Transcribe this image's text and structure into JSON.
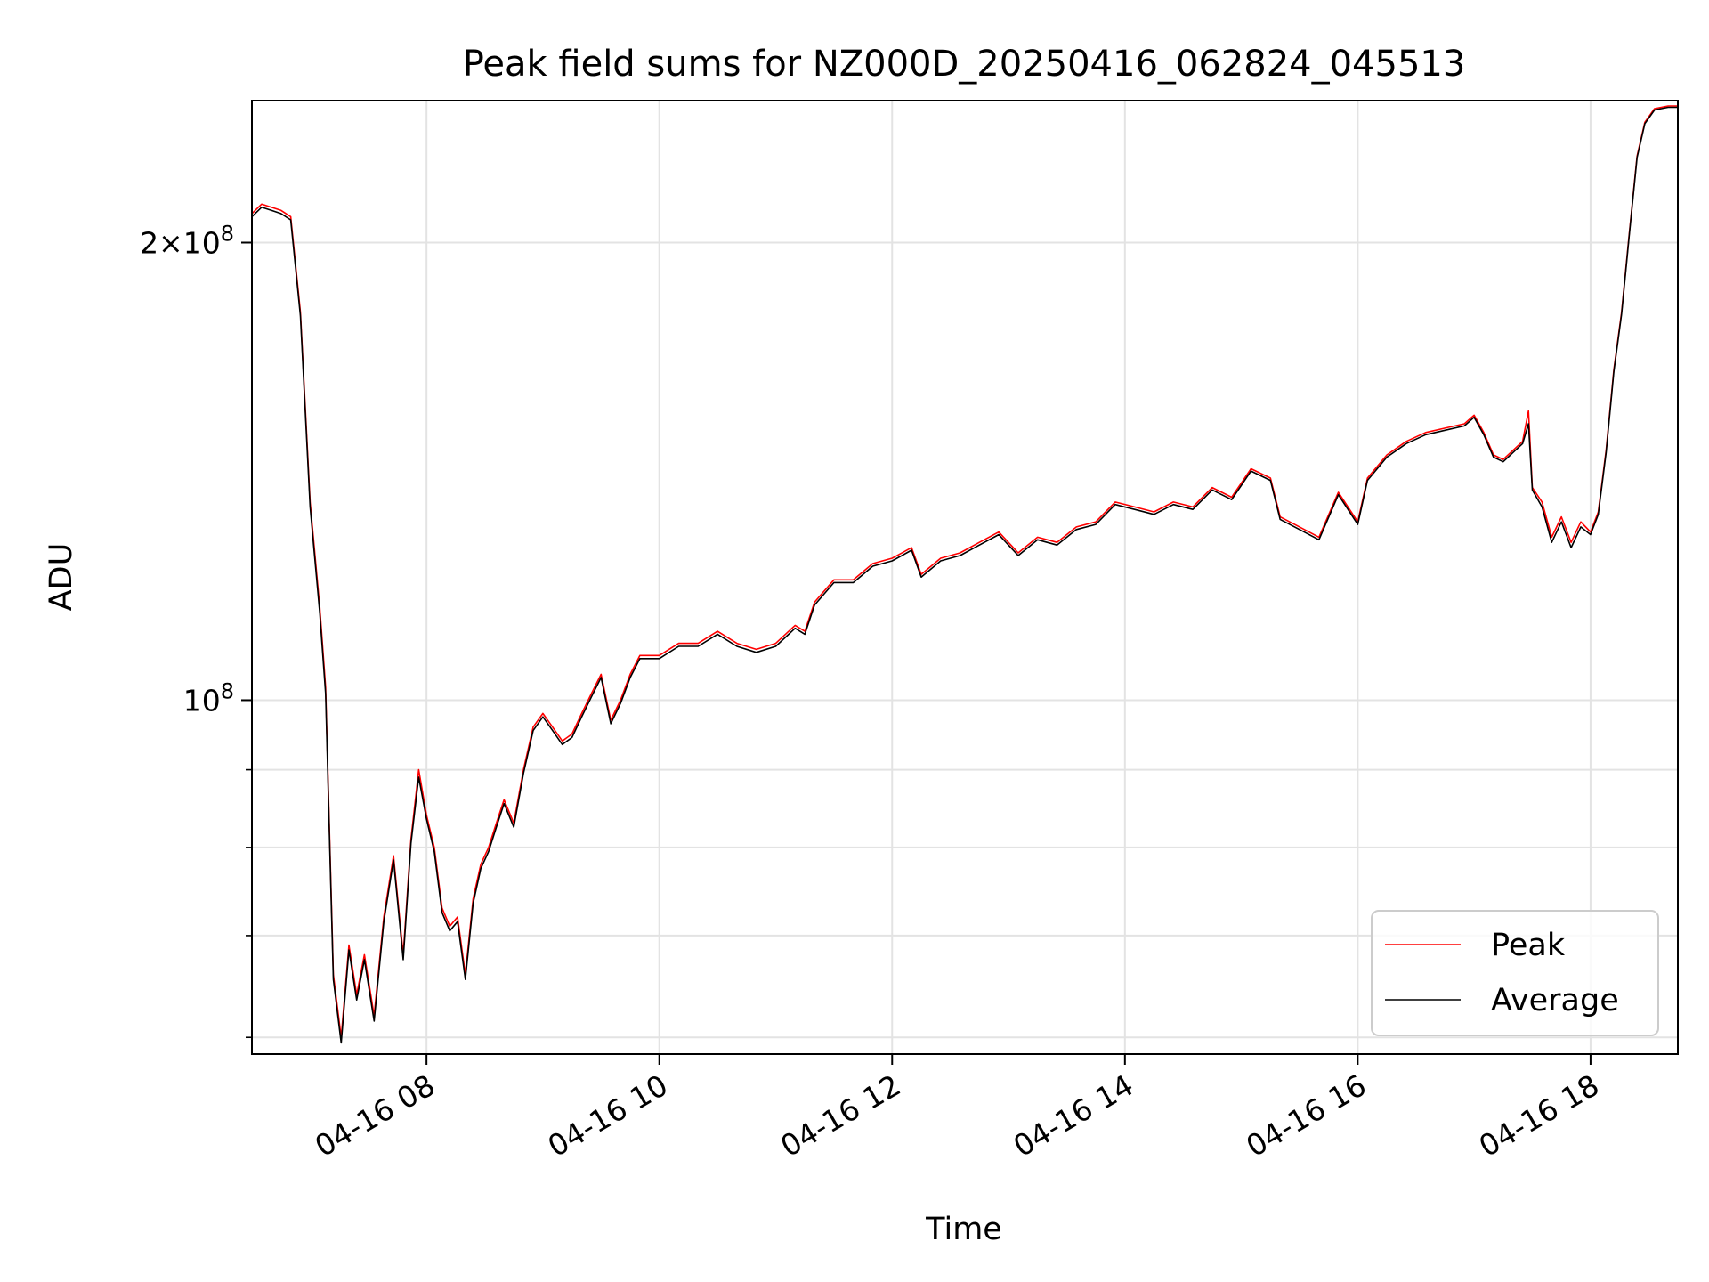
{
  "chart_data": {
    "type": "line",
    "title": "Peak field sums for NZ000D_20250416_062824_045513",
    "xlabel": "Time",
    "ylabel": "ADU",
    "y_scale": "log",
    "ylim": [
      58500000,
      248000000
    ],
    "xlim": [
      "2025-04-16 06:30",
      "2025-04-16 18:45"
    ],
    "grid": true,
    "legend_position": "lower right",
    "x_ticks": [
      {
        "t": "2025-04-16 08:00",
        "label": "04-16 08"
      },
      {
        "t": "2025-04-16 10:00",
        "label": "04-16 10"
      },
      {
        "t": "2025-04-16 12:00",
        "label": "04-16 12"
      },
      {
        "t": "2025-04-16 14:00",
        "label": "04-16 14"
      },
      {
        "t": "2025-04-16 16:00",
        "label": "04-16 16"
      },
      {
        "t": "2025-04-16 18:00",
        "label": "04-16 18"
      }
    ],
    "y_major_ticks": [
      {
        "v": 100000000,
        "base": "10",
        "exp": "8",
        "mantissa": ""
      },
      {
        "v": 200000000,
        "base": "10",
        "exp": "8",
        "mantissa": "2"
      }
    ],
    "y_minor_ticks": [
      60000000,
      70000000,
      80000000,
      90000000
    ],
    "series": [
      {
        "name": "Peak",
        "color": "#ff0000",
        "points": [
          [
            "2025-04-16 06:30",
            209000000
          ],
          [
            "2025-04-16 06:35",
            212000000
          ],
          [
            "2025-04-16 06:40",
            211000000
          ],
          [
            "2025-04-16 06:45",
            210000000
          ],
          [
            "2025-04-16 06:50",
            208000000
          ],
          [
            "2025-04-16 06:55",
            180000000
          ],
          [
            "2025-04-16 07:00",
            135000000
          ],
          [
            "2025-04-16 07:05",
            115000000
          ],
          [
            "2025-04-16 07:08",
            102000000
          ],
          [
            "2025-04-16 07:12",
            66000000
          ],
          [
            "2025-04-16 07:16",
            60000000
          ],
          [
            "2025-04-16 07:20",
            69000000
          ],
          [
            "2025-04-16 07:24",
            64000000
          ],
          [
            "2025-04-16 07:28",
            68000000
          ],
          [
            "2025-04-16 07:33",
            62000000
          ],
          [
            "2025-04-16 07:38",
            72000000
          ],
          [
            "2025-04-16 07:43",
            79000000
          ],
          [
            "2025-04-16 07:48",
            68000000
          ],
          [
            "2025-04-16 07:52",
            81000000
          ],
          [
            "2025-04-16 07:56",
            90000000
          ],
          [
            "2025-04-16 08:00",
            84000000
          ],
          [
            "2025-04-16 08:04",
            80000000
          ],
          [
            "2025-04-16 08:08",
            73000000
          ],
          [
            "2025-04-16 08:12",
            71000000
          ],
          [
            "2025-04-16 08:16",
            72000000
          ],
          [
            "2025-04-16 08:20",
            66000000
          ],
          [
            "2025-04-16 08:24",
            74000000
          ],
          [
            "2025-04-16 08:28",
            78000000
          ],
          [
            "2025-04-16 08:32",
            80000000
          ],
          [
            "2025-04-16 08:36",
            83000000
          ],
          [
            "2025-04-16 08:40",
            86000000
          ],
          [
            "2025-04-16 08:45",
            83000000
          ],
          [
            "2025-04-16 08:50",
            90000000
          ],
          [
            "2025-04-16 08:55",
            96000000
          ],
          [
            "2025-04-16 09:00",
            98000000
          ],
          [
            "2025-04-16 09:05",
            96000000
          ],
          [
            "2025-04-16 09:10",
            94000000
          ],
          [
            "2025-04-16 09:15",
            95000000
          ],
          [
            "2025-04-16 09:20",
            98000000
          ],
          [
            "2025-04-16 09:25",
            101000000
          ],
          [
            "2025-04-16 09:30",
            104000000
          ],
          [
            "2025-04-16 09:35",
            97000000
          ],
          [
            "2025-04-16 09:40",
            100000000
          ],
          [
            "2025-04-16 09:45",
            104000000
          ],
          [
            "2025-04-16 09:50",
            107000000
          ],
          [
            "2025-04-16 10:00",
            107000000
          ],
          [
            "2025-04-16 10:10",
            109000000
          ],
          [
            "2025-04-16 10:20",
            109000000
          ],
          [
            "2025-04-16 10:30",
            111000000
          ],
          [
            "2025-04-16 10:40",
            109000000
          ],
          [
            "2025-04-16 10:50",
            108000000
          ],
          [
            "2025-04-16 11:00",
            109000000
          ],
          [
            "2025-04-16 11:10",
            112000000
          ],
          [
            "2025-04-16 11:15",
            111000000
          ],
          [
            "2025-04-16 11:20",
            116000000
          ],
          [
            "2025-04-16 11:30",
            120000000
          ],
          [
            "2025-04-16 11:40",
            120000000
          ],
          [
            "2025-04-16 11:50",
            123000000
          ],
          [
            "2025-04-16 12:00",
            124000000
          ],
          [
            "2025-04-16 12:10",
            126000000
          ],
          [
            "2025-04-16 12:15",
            121000000
          ],
          [
            "2025-04-16 12:25",
            124000000
          ],
          [
            "2025-04-16 12:35",
            125000000
          ],
          [
            "2025-04-16 12:45",
            127000000
          ],
          [
            "2025-04-16 12:55",
            129000000
          ],
          [
            "2025-04-16 13:05",
            125000000
          ],
          [
            "2025-04-16 13:15",
            128000000
          ],
          [
            "2025-04-16 13:25",
            127000000
          ],
          [
            "2025-04-16 13:35",
            130000000
          ],
          [
            "2025-04-16 13:45",
            131000000
          ],
          [
            "2025-04-16 13:55",
            135000000
          ],
          [
            "2025-04-16 14:05",
            134000000
          ],
          [
            "2025-04-16 14:15",
            133000000
          ],
          [
            "2025-04-16 14:25",
            135000000
          ],
          [
            "2025-04-16 14:35",
            134000000
          ],
          [
            "2025-04-16 14:45",
            138000000
          ],
          [
            "2025-04-16 14:55",
            136000000
          ],
          [
            "2025-04-16 15:05",
            142000000
          ],
          [
            "2025-04-16 15:15",
            140000000
          ],
          [
            "2025-04-16 15:20",
            132000000
          ],
          [
            "2025-04-16 15:30",
            130000000
          ],
          [
            "2025-04-16 15:40",
            128000000
          ],
          [
            "2025-04-16 15:50",
            137000000
          ],
          [
            "2025-04-16 16:00",
            131000000
          ],
          [
            "2025-04-16 16:05",
            140000000
          ],
          [
            "2025-04-16 16:15",
            145000000
          ],
          [
            "2025-04-16 16:25",
            148000000
          ],
          [
            "2025-04-16 16:35",
            150000000
          ],
          [
            "2025-04-16 16:45",
            151000000
          ],
          [
            "2025-04-16 16:55",
            152000000
          ],
          [
            "2025-04-16 17:00",
            154000000
          ],
          [
            "2025-04-16 17:05",
            150000000
          ],
          [
            "2025-04-16 17:10",
            145000000
          ],
          [
            "2025-04-16 17:15",
            144000000
          ],
          [
            "2025-04-16 17:20",
            146000000
          ],
          [
            "2025-04-16 17:25",
            148000000
          ],
          [
            "2025-04-16 17:28",
            155000000
          ],
          [
            "2025-04-16 17:30",
            138000000
          ],
          [
            "2025-04-16 17:35",
            135000000
          ],
          [
            "2025-04-16 17:40",
            128000000
          ],
          [
            "2025-04-16 17:45",
            132000000
          ],
          [
            "2025-04-16 17:50",
            127000000
          ],
          [
            "2025-04-16 17:55",
            131000000
          ],
          [
            "2025-04-16 18:00",
            129000000
          ],
          [
            "2025-04-16 18:04",
            133000000
          ],
          [
            "2025-04-16 18:08",
            146000000
          ],
          [
            "2025-04-16 18:12",
            165000000
          ],
          [
            "2025-04-16 18:16",
            180000000
          ],
          [
            "2025-04-16 18:20",
            203000000
          ],
          [
            "2025-04-16 18:24",
            228000000
          ],
          [
            "2025-04-16 18:28",
            240000000
          ],
          [
            "2025-04-16 18:33",
            245000000
          ],
          [
            "2025-04-16 18:40",
            246000000
          ],
          [
            "2025-04-16 18:45",
            246000000
          ]
        ]
      },
      {
        "name": "Average",
        "color": "#000000",
        "points": [
          [
            "2025-04-16 06:30",
            208000000
          ],
          [
            "2025-04-16 06:35",
            211000000
          ],
          [
            "2025-04-16 06:40",
            210000000
          ],
          [
            "2025-04-16 06:45",
            209000000
          ],
          [
            "2025-04-16 06:50",
            207000000
          ],
          [
            "2025-04-16 06:55",
            179000000
          ],
          [
            "2025-04-16 07:00",
            134000000
          ],
          [
            "2025-04-16 07:05",
            114000000
          ],
          [
            "2025-04-16 07:08",
            101000000
          ],
          [
            "2025-04-16 07:12",
            65500000
          ],
          [
            "2025-04-16 07:16",
            59500000
          ],
          [
            "2025-04-16 07:20",
            68500000
          ],
          [
            "2025-04-16 07:24",
            63500000
          ],
          [
            "2025-04-16 07:28",
            67500000
          ],
          [
            "2025-04-16 07:33",
            61500000
          ],
          [
            "2025-04-16 07:38",
            71500000
          ],
          [
            "2025-04-16 07:43",
            78500000
          ],
          [
            "2025-04-16 07:48",
            67500000
          ],
          [
            "2025-04-16 07:52",
            80500000
          ],
          [
            "2025-04-16 07:56",
            89000000
          ],
          [
            "2025-04-16 08:00",
            83500000
          ],
          [
            "2025-04-16 08:04",
            79500000
          ],
          [
            "2025-04-16 08:08",
            72500000
          ],
          [
            "2025-04-16 08:12",
            70500000
          ],
          [
            "2025-04-16 08:16",
            71500000
          ],
          [
            "2025-04-16 08:20",
            65500000
          ],
          [
            "2025-04-16 08:24",
            73500000
          ],
          [
            "2025-04-16 08:28",
            77500000
          ],
          [
            "2025-04-16 08:32",
            79500000
          ],
          [
            "2025-04-16 08:36",
            82500000
          ],
          [
            "2025-04-16 08:40",
            85500000
          ],
          [
            "2025-04-16 08:45",
            82500000
          ],
          [
            "2025-04-16 08:50",
            89500000
          ],
          [
            "2025-04-16 08:55",
            95500000
          ],
          [
            "2025-04-16 09:00",
            97500000
          ],
          [
            "2025-04-16 09:05",
            95500000
          ],
          [
            "2025-04-16 09:10",
            93500000
          ],
          [
            "2025-04-16 09:15",
            94500000
          ],
          [
            "2025-04-16 09:20",
            97500000
          ],
          [
            "2025-04-16 09:25",
            100500000
          ],
          [
            "2025-04-16 09:30",
            103500000
          ],
          [
            "2025-04-16 09:35",
            96500000
          ],
          [
            "2025-04-16 09:40",
            99500000
          ],
          [
            "2025-04-16 09:45",
            103500000
          ],
          [
            "2025-04-16 09:50",
            106500000
          ],
          [
            "2025-04-16 10:00",
            106500000
          ],
          [
            "2025-04-16 10:10",
            108500000
          ],
          [
            "2025-04-16 10:20",
            108500000
          ],
          [
            "2025-04-16 10:30",
            110500000
          ],
          [
            "2025-04-16 10:40",
            108500000
          ],
          [
            "2025-04-16 10:50",
            107500000
          ],
          [
            "2025-04-16 11:00",
            108500000
          ],
          [
            "2025-04-16 11:10",
            111500000
          ],
          [
            "2025-04-16 11:15",
            110500000
          ],
          [
            "2025-04-16 11:20",
            115500000
          ],
          [
            "2025-04-16 11:30",
            119500000
          ],
          [
            "2025-04-16 11:40",
            119500000
          ],
          [
            "2025-04-16 11:50",
            122500000
          ],
          [
            "2025-04-16 12:00",
            123500000
          ],
          [
            "2025-04-16 12:10",
            125500000
          ],
          [
            "2025-04-16 12:15",
            120500000
          ],
          [
            "2025-04-16 12:25",
            123500000
          ],
          [
            "2025-04-16 12:35",
            124500000
          ],
          [
            "2025-04-16 12:45",
            126500000
          ],
          [
            "2025-04-16 12:55",
            128500000
          ],
          [
            "2025-04-16 13:05",
            124500000
          ],
          [
            "2025-04-16 13:15",
            127500000
          ],
          [
            "2025-04-16 13:25",
            126500000
          ],
          [
            "2025-04-16 13:35",
            129500000
          ],
          [
            "2025-04-16 13:45",
            130500000
          ],
          [
            "2025-04-16 13:55",
            134500000
          ],
          [
            "2025-04-16 14:05",
            133500000
          ],
          [
            "2025-04-16 14:15",
            132500000
          ],
          [
            "2025-04-16 14:25",
            134500000
          ],
          [
            "2025-04-16 14:35",
            133500000
          ],
          [
            "2025-04-16 14:45",
            137500000
          ],
          [
            "2025-04-16 14:55",
            135500000
          ],
          [
            "2025-04-16 15:05",
            141500000
          ],
          [
            "2025-04-16 15:15",
            139500000
          ],
          [
            "2025-04-16 15:20",
            131500000
          ],
          [
            "2025-04-16 15:30",
            129500000
          ],
          [
            "2025-04-16 15:40",
            127500000
          ],
          [
            "2025-04-16 15:50",
            136500000
          ],
          [
            "2025-04-16 16:00",
            130500000
          ],
          [
            "2025-04-16 16:05",
            139500000
          ],
          [
            "2025-04-16 16:15",
            144500000
          ],
          [
            "2025-04-16 16:25",
            147500000
          ],
          [
            "2025-04-16 16:35",
            149500000
          ],
          [
            "2025-04-16 16:45",
            150500000
          ],
          [
            "2025-04-16 16:55",
            151500000
          ],
          [
            "2025-04-16 17:00",
            153500000
          ],
          [
            "2025-04-16 17:05",
            149500000
          ],
          [
            "2025-04-16 17:10",
            144500000
          ],
          [
            "2025-04-16 17:15",
            143500000
          ],
          [
            "2025-04-16 17:20",
            145500000
          ],
          [
            "2025-04-16 17:25",
            147500000
          ],
          [
            "2025-04-16 17:28",
            152000000
          ],
          [
            "2025-04-16 17:30",
            137500000
          ],
          [
            "2025-04-16 17:35",
            134000000
          ],
          [
            "2025-04-16 17:40",
            127000000
          ],
          [
            "2025-04-16 17:45",
            131000000
          ],
          [
            "2025-04-16 17:50",
            126000000
          ],
          [
            "2025-04-16 17:55",
            130000000
          ],
          [
            "2025-04-16 18:00",
            128500000
          ],
          [
            "2025-04-16 18:04",
            132500000
          ],
          [
            "2025-04-16 18:08",
            145500000
          ],
          [
            "2025-04-16 18:12",
            164500000
          ],
          [
            "2025-04-16 18:16",
            179500000
          ],
          [
            "2025-04-16 18:20",
            202500000
          ],
          [
            "2025-04-16 18:24",
            227500000
          ],
          [
            "2025-04-16 18:28",
            239500000
          ],
          [
            "2025-04-16 18:33",
            244500000
          ],
          [
            "2025-04-16 18:40",
            245500000
          ],
          [
            "2025-04-16 18:45",
            245500000
          ]
        ]
      }
    ]
  }
}
